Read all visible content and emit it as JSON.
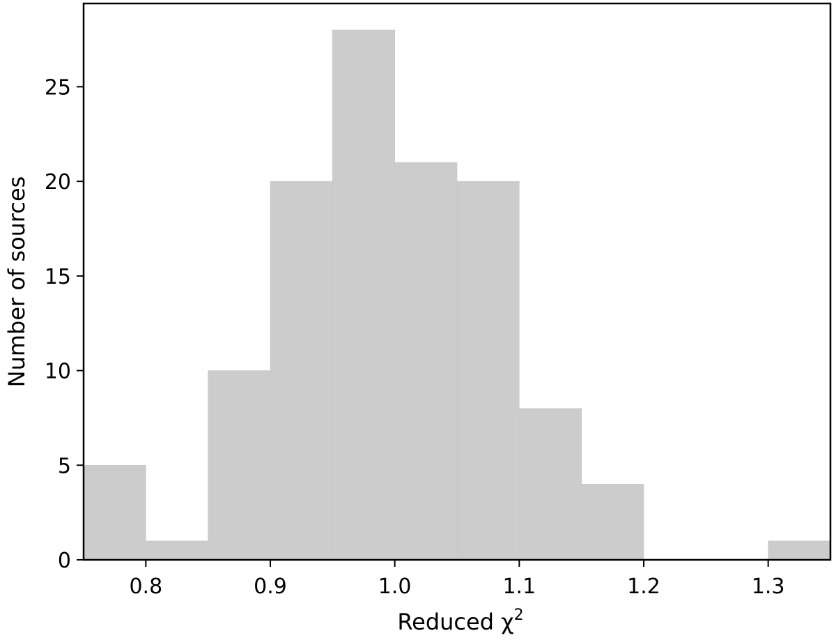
{
  "chart_data": {
    "type": "bar",
    "title": "",
    "xlabel": "Reduced χ",
    "xlabel_superscript": "2",
    "ylabel": "Number of sources",
    "bin_edges": [
      0.75,
      0.8,
      0.85,
      0.9,
      0.95,
      1.0,
      1.05,
      1.1,
      1.15,
      1.2,
      1.25,
      1.3,
      1.35
    ],
    "values": [
      5,
      1,
      10,
      20,
      28,
      21,
      20,
      8,
      4,
      0,
      0,
      1
    ],
    "xlim": [
      0.75,
      1.35
    ],
    "ylim": [
      0,
      29.4
    ],
    "xticks": [
      "0.8",
      "0.9",
      "1.0",
      "1.1",
      "1.2",
      "1.3"
    ],
    "yticks": [
      "0",
      "5",
      "10",
      "15",
      "20",
      "25"
    ],
    "bar_color": "#cccccc",
    "grid": false,
    "legend": "none"
  }
}
